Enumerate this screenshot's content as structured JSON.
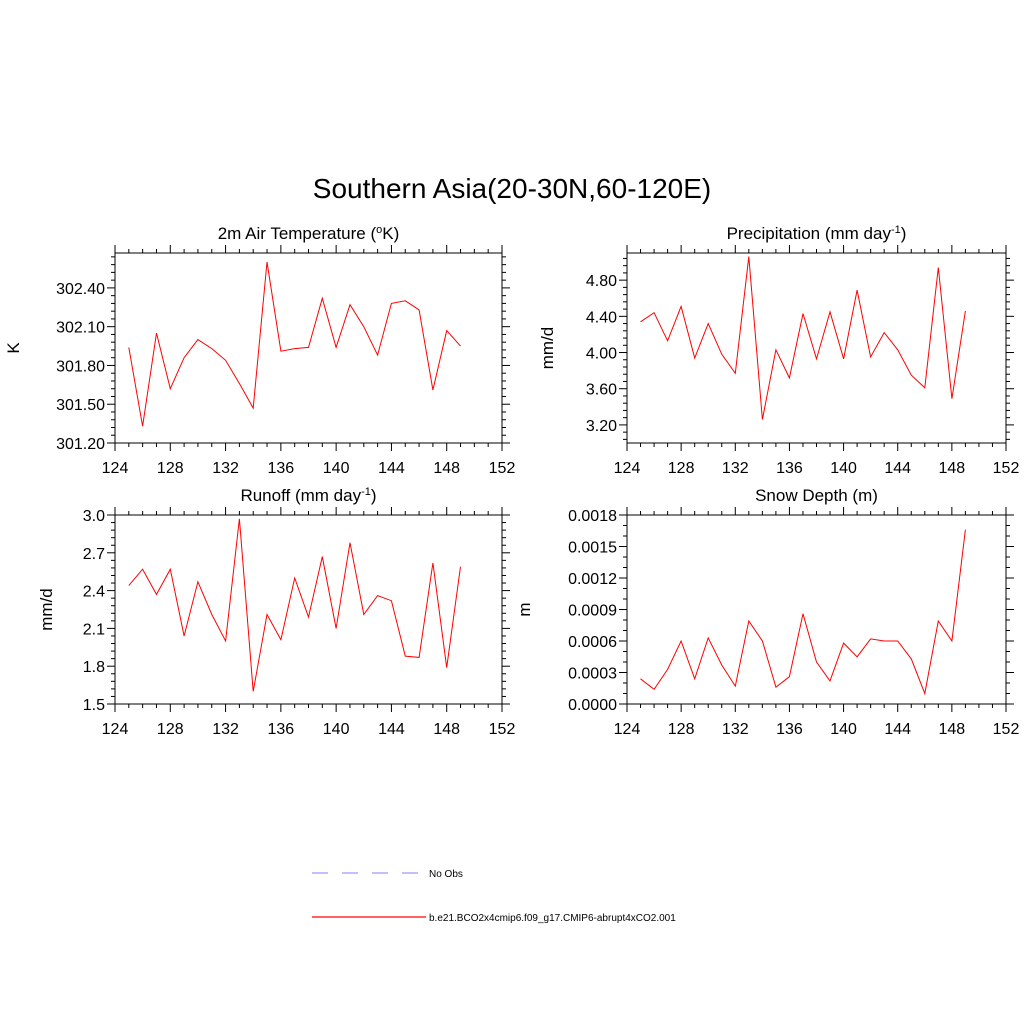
{
  "figure": {
    "title": "Southern Asia(20-30N,60-120E)"
  },
  "colors": {
    "model_line": "#ff0000",
    "obs_line": "#9a9aff",
    "axis": "#000000"
  },
  "legend": {
    "entries": [
      {
        "label": "No Obs",
        "style": "dashed",
        "color": "#9a9aff"
      },
      {
        "label": "b.e21.BCO2x4cmip6.f09_g17.CMIP6-abrupt4xCO2.001",
        "style": "solid",
        "color": "#ff0000"
      }
    ]
  },
  "chart_data": [
    {
      "type": "line",
      "panel": "top-left",
      "title": "2m Air Temperature (",
      "title_sup": "o",
      "title_after": "K)",
      "xlabel": "",
      "ylabel": "K",
      "xlim": [
        124,
        152
      ],
      "ylim": [
        301.2,
        302.67
      ],
      "xticks": [
        124,
        128,
        132,
        136,
        140,
        144,
        148,
        152
      ],
      "xtick_labels": [
        "124",
        "128",
        "132",
        "136",
        "140",
        "144",
        "148",
        "152"
      ],
      "yticks": [
        301.2,
        301.5,
        301.8,
        302.1,
        302.4
      ],
      "ytick_labels": [
        "301.20",
        "301.50",
        "301.80",
        "302.10",
        "302.40"
      ],
      "yminor_step": 0.06,
      "series": [
        {
          "name": "b.e21.BCO2x4cmip6.f09_g17.CMIP6-abrupt4xCO2.001",
          "x": [
            125,
            126,
            127,
            128,
            129,
            130,
            131,
            132,
            133,
            134,
            135,
            136,
            137,
            138,
            139,
            140,
            141,
            142,
            143,
            144,
            145,
            146,
            147,
            148,
            149
          ],
          "values": [
            301.94,
            301.33,
            302.05,
            301.62,
            301.86,
            302.0,
            301.93,
            301.84,
            301.66,
            301.47,
            302.6,
            301.91,
            301.93,
            301.94,
            302.32,
            301.94,
            302.27,
            302.1,
            301.88,
            302.28,
            302.3,
            302.23,
            301.61,
            302.07,
            301.95
          ]
        }
      ]
    },
    {
      "type": "line",
      "panel": "top-right",
      "title": "Precipitation (mm day",
      "title_sup": "-1",
      "title_after": ")",
      "xlabel": "",
      "ylabel": "mm/d",
      "xlim": [
        124,
        152
      ],
      "ylim": [
        3.0,
        5.1
      ],
      "xticks": [
        124,
        128,
        132,
        136,
        140,
        144,
        148,
        152
      ],
      "xtick_labels": [
        "124",
        "128",
        "132",
        "136",
        "140",
        "144",
        "148",
        "152"
      ],
      "yticks": [
        3.2,
        3.6,
        4.0,
        4.4,
        4.8
      ],
      "ytick_labels": [
        "3.20",
        "3.60",
        "4.00",
        "4.40",
        "4.80"
      ],
      "yminor_step": 0.08,
      "series": [
        {
          "name": "b.e21.BCO2x4cmip6.f09_g17.CMIP6-abrupt4xCO2.001",
          "x": [
            125,
            126,
            127,
            128,
            129,
            130,
            131,
            132,
            133,
            134,
            135,
            136,
            137,
            138,
            139,
            140,
            141,
            142,
            143,
            144,
            145,
            146,
            147,
            148,
            149
          ],
          "values": [
            4.34,
            4.44,
            4.13,
            4.51,
            3.94,
            4.32,
            3.98,
            3.77,
            5.06,
            3.26,
            4.03,
            3.72,
            4.43,
            3.93,
            4.45,
            3.93,
            4.69,
            3.95,
            4.22,
            4.03,
            3.75,
            3.61,
            4.94,
            3.49,
            4.46
          ]
        }
      ]
    },
    {
      "type": "line",
      "panel": "bottom-left",
      "title": "Runoff (mm day",
      "title_sup": "-1",
      "title_after": ")",
      "xlabel": "",
      "ylabel": "mm/d",
      "xlim": [
        124,
        152
      ],
      "ylim": [
        1.5,
        3.0
      ],
      "xticks": [
        124,
        128,
        132,
        136,
        140,
        144,
        148,
        152
      ],
      "xtick_labels": [
        "124",
        "128",
        "132",
        "136",
        "140",
        "144",
        "148",
        "152"
      ],
      "yticks": [
        1.5,
        1.8,
        2.1,
        2.4,
        2.7,
        3.0
      ],
      "ytick_labels": [
        "1.5",
        "1.8",
        "2.1",
        "2.4",
        "2.7",
        "3.0"
      ],
      "yminor_step": 0.06,
      "series": [
        {
          "name": "b.e21.BCO2x4cmip6.f09_g17.CMIP6-abrupt4xCO2.001",
          "x": [
            125,
            126,
            127,
            128,
            129,
            130,
            131,
            132,
            133,
            134,
            135,
            136,
            137,
            138,
            139,
            140,
            141,
            142,
            143,
            144,
            145,
            146,
            147,
            148,
            149
          ],
          "values": [
            2.44,
            2.57,
            2.37,
            2.57,
            2.04,
            2.47,
            2.21,
            2.0,
            2.97,
            1.6,
            2.21,
            2.01,
            2.5,
            2.19,
            2.67,
            2.1,
            2.78,
            2.21,
            2.36,
            2.32,
            1.88,
            1.87,
            2.62,
            1.79,
            2.59
          ]
        }
      ]
    },
    {
      "type": "line",
      "panel": "bottom-right",
      "title": "Snow Depth (m)",
      "title_sup": "",
      "title_after": "",
      "xlabel": "",
      "ylabel": "m",
      "xlim": [
        124,
        152
      ],
      "ylim": [
        0.0,
        0.0018
      ],
      "xticks": [
        124,
        128,
        132,
        136,
        140,
        144,
        148,
        152
      ],
      "xtick_labels": [
        "124",
        "128",
        "132",
        "136",
        "140",
        "144",
        "148",
        "152"
      ],
      "yticks": [
        0.0,
        0.0003,
        0.0006,
        0.0009,
        0.0012,
        0.0015,
        0.0018
      ],
      "ytick_labels": [
        "0.0000",
        "0.0003",
        "0.0006",
        "0.0009",
        "0.0012",
        "0.0015",
        "0.0018"
      ],
      "yminor_step": 0.0001,
      "series": [
        {
          "name": "b.e21.BCO2x4cmip6.f09_g17.CMIP6-abrupt4xCO2.001",
          "x": [
            125,
            126,
            127,
            128,
            129,
            130,
            131,
            132,
            133,
            134,
            135,
            136,
            137,
            138,
            139,
            140,
            141,
            142,
            143,
            144,
            145,
            146,
            147,
            148,
            149
          ],
          "values": [
            0.00024,
            0.00014,
            0.00033,
            0.0006,
            0.00024,
            0.00063,
            0.00037,
            0.00017,
            0.00079,
            0.0006,
            0.00016,
            0.00026,
            0.00086,
            0.0004,
            0.00022,
            0.00058,
            0.00045,
            0.00062,
            0.0006,
            0.0006,
            0.00043,
            0.0001,
            0.00079,
            0.0006,
            0.00166
          ]
        }
      ]
    }
  ]
}
